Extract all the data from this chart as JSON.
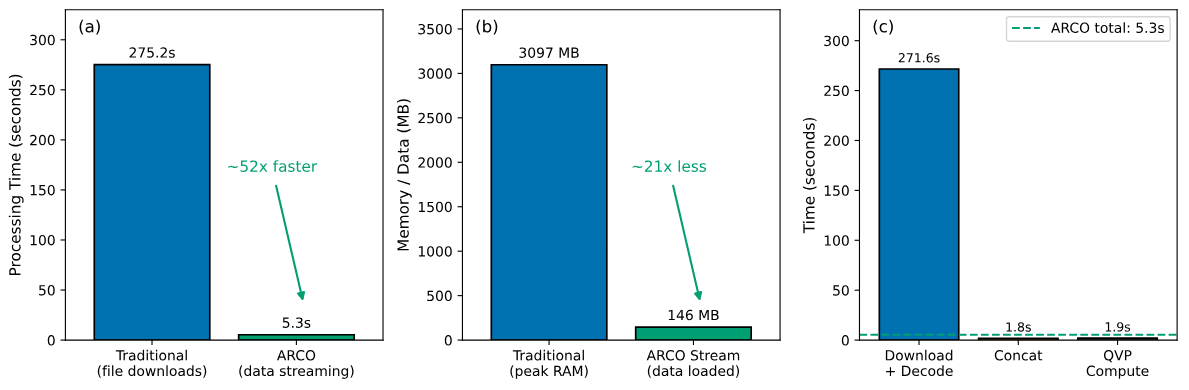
{
  "chart_data": [
    {
      "type": "bar",
      "categories": [
        "Traditional\n(file downloads)",
        "ARCO\n(data streaming)"
      ],
      "values": [
        275.2,
        5.3
      ],
      "colors": [
        "#0072b2",
        "#009e73"
      ],
      "value_labels": [
        "275.2s",
        "5.3s"
      ],
      "ylabel": "Processing Time (seconds)",
      "ylim": [
        0,
        330
      ],
      "yticks": [
        0,
        50,
        100,
        150,
        200,
        250,
        300
      ],
      "grid": false,
      "legend": false,
      "annotations": [
        "(a)",
        "~52x faster"
      ]
    },
    {
      "type": "bar",
      "categories": [
        "Traditional\n(peak RAM)",
        "ARCO Stream\n(data loaded)"
      ],
      "values": [
        3097,
        146
      ],
      "colors": [
        "#0072b2",
        "#009e73"
      ],
      "value_labels": [
        "3097 MB",
        "146 MB"
      ],
      "ylabel": "Memory / Data (MB)",
      "ylim": [
        0,
        3716
      ],
      "yticks": [
        0,
        500,
        1000,
        1500,
        2000,
        2500,
        3000,
        3500
      ],
      "grid": false,
      "legend": false,
      "annotations": [
        "(b)",
        "~21x less"
      ]
    },
    {
      "type": "bar",
      "categories": [
        "Download\n+ Decode",
        "Concat",
        "QVP\nCompute"
      ],
      "values": [
        271.6,
        1.8,
        1.9
      ],
      "colors": [
        "#0072b2",
        "#e69f00",
        "#cc79a7"
      ],
      "value_labels": [
        "271.6s",
        "1.8s",
        "1.9s"
      ],
      "ylabel": "Time (seconds)",
      "ylim": [
        0,
        331
      ],
      "yticks": [
        0,
        50,
        100,
        150,
        200,
        250,
        300
      ],
      "grid": false,
      "legend": "top right",
      "ref_lines": [
        {
          "axis": "y",
          "value": 5.3,
          "label": "ARCO total: 5.3s",
          "color": "#009e73",
          "line_style": "dashed"
        }
      ],
      "annotations": [
        "(c)"
      ]
    }
  ]
}
